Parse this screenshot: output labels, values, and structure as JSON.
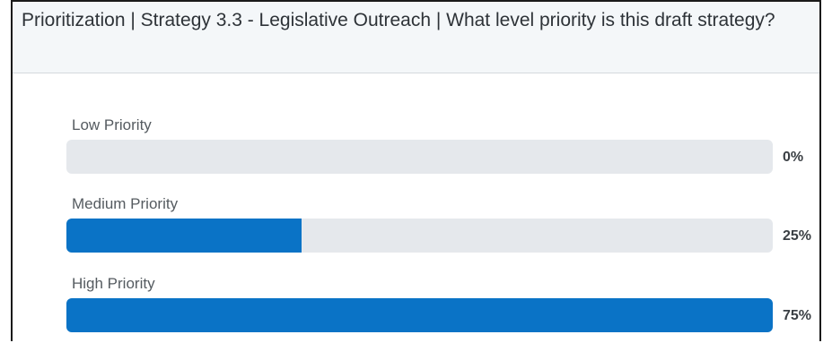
{
  "header": {
    "title": "Prioritization | Strategy 3.3 - Legislative Outreach | What level priority is this draft strategy?"
  },
  "colors": {
    "bar_fill": "#0a73c6",
    "bar_track": "#e5e8ec",
    "header_bg": "#f4f7f9"
  },
  "chart_data": {
    "type": "bar",
    "orientation": "horizontal",
    "title": "Prioritization | Strategy 3.3 - Legislative Outreach | What level priority is this draft strategy?",
    "categories": [
      "Low Priority",
      "Medium Priority",
      "High Priority"
    ],
    "values": [
      0,
      25,
      75
    ],
    "value_labels": [
      "0%",
      "25%",
      "75%"
    ],
    "unit": "%",
    "xlim": [
      0,
      75
    ],
    "grid": false,
    "legend": "none"
  }
}
